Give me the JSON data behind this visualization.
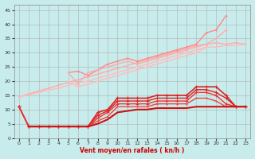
{
  "background_color": "#c8ecec",
  "grid_color": "#b0b0b0",
  "xlabel": "Vent moyen/en rafales ( kn/h )",
  "ylabel_ticks": [
    0,
    5,
    10,
    15,
    20,
    25,
    30,
    35,
    40,
    45
  ],
  "xlim": [
    -0.5,
    23.5
  ],
  "ylim": [
    0,
    47
  ],
  "xtick_labels": [
    "0",
    "1",
    "2",
    "3",
    "4",
    "5",
    "6",
    "7",
    "8",
    "9",
    "10",
    "11",
    "12",
    "13",
    "14",
    "15",
    "16",
    "17",
    "18",
    "19",
    "20",
    "21",
    "22",
    "23"
  ],
  "light_lines": [
    {
      "x": [
        0,
        1,
        2,
        3,
        4,
        5,
        6,
        7,
        8,
        9,
        10,
        11,
        12,
        13,
        14,
        15,
        16,
        17,
        18,
        19,
        20,
        21,
        22,
        23
      ],
      "y": [
        14.5,
        15.5,
        16.5,
        17.5,
        18.5,
        19.5,
        20.5,
        21.5,
        22.5,
        23.5,
        24.5,
        25.5,
        26.5,
        27.5,
        28.5,
        29.5,
        30.5,
        31.5,
        32.5,
        33.0,
        33.5,
        33.0,
        33.5,
        33.0
      ],
      "color": "#ffaaaa",
      "lw": 1.0
    },
    {
      "x": [
        0,
        1,
        2,
        3,
        4,
        5,
        6,
        7,
        8,
        9,
        10,
        11,
        12,
        13,
        14,
        15,
        16,
        17,
        18,
        19,
        20,
        21,
        22,
        23
      ],
      "y": [
        14.5,
        15.2,
        16.0,
        16.8,
        17.5,
        18.5,
        19.5,
        20.0,
        21.0,
        22.0,
        23.0,
        24.0,
        25.0,
        26.0,
        27.0,
        28.0,
        29.0,
        30.0,
        31.0,
        32.0,
        32.0,
        32.5,
        32.5,
        33.0
      ],
      "color": "#ffbbbb",
      "lw": 1.0
    },
    {
      "x": [
        5,
        6,
        7,
        8,
        9,
        10,
        11,
        12,
        13,
        14,
        15,
        16,
        17,
        18,
        19,
        20,
        21
      ],
      "y": [
        23,
        23.5,
        22,
        24,
        26,
        27,
        28,
        27,
        28,
        29,
        30,
        31,
        32,
        33,
        37,
        38,
        43
      ],
      "color": "#ff8888",
      "lw": 1.0
    },
    {
      "x": [
        5,
        6,
        7,
        8,
        9,
        10,
        11,
        12,
        13,
        14,
        15,
        16,
        17,
        18,
        19,
        20,
        21
      ],
      "y": [
        23,
        19,
        23,
        24,
        25,
        26,
        27,
        26,
        27,
        28,
        29,
        30,
        31,
        32,
        33,
        35,
        38
      ],
      "color": "#ffaaaa",
      "lw": 1.0
    },
    {
      "x": [
        5,
        6,
        7,
        8,
        9,
        10,
        11,
        12,
        13,
        14,
        15,
        16,
        17,
        18,
        19
      ],
      "y": [
        20,
        18,
        19,
        20,
        21,
        22,
        23,
        24,
        25,
        26,
        27,
        28,
        29,
        30,
        32
      ],
      "color": "#ffbbbb",
      "lw": 1.0
    }
  ],
  "dark_lines": [
    {
      "x": [
        0,
        1,
        2,
        3,
        4,
        5,
        6,
        7,
        8,
        9,
        10,
        11,
        12,
        13,
        14,
        15,
        16,
        17,
        18,
        19,
        20,
        21,
        22,
        23
      ],
      "y": [
        11,
        4,
        4,
        4,
        4,
        4,
        4,
        4,
        9,
        10,
        14,
        14,
        14,
        14,
        15,
        15,
        15,
        15,
        18,
        18,
        18,
        15,
        11,
        11
      ],
      "color": "#dd2222",
      "lw": 1.2,
      "marker": "+",
      "ms": 3.5
    },
    {
      "x": [
        0,
        1,
        2,
        3,
        4,
        5,
        6,
        7,
        8,
        9,
        10,
        11,
        12,
        13,
        14,
        15,
        16,
        17,
        18,
        19,
        20,
        21,
        22,
        23
      ],
      "y": [
        11,
        4,
        4,
        4,
        4,
        4,
        4,
        4,
        8,
        9.5,
        13,
        13,
        13,
        13,
        14,
        14,
        14,
        14,
        17,
        17,
        16,
        14,
        11,
        11
      ],
      "color": "#dd2222",
      "lw": 1.0,
      "marker": "+",
      "ms": 3.0
    },
    {
      "x": [
        0,
        1,
        2,
        3,
        4,
        5,
        6,
        7,
        8,
        9,
        10,
        11,
        12,
        13,
        14,
        15,
        16,
        17,
        18,
        19,
        20,
        21,
        22,
        23
      ],
      "y": [
        11,
        4,
        4,
        4,
        4,
        4,
        4,
        4,
        7,
        9,
        12,
        12,
        12,
        12,
        13,
        13,
        13,
        13,
        16,
        16,
        15,
        12,
        11,
        11
      ],
      "color": "#ee3333",
      "lw": 1.0,
      "marker": "+",
      "ms": 2.5
    },
    {
      "x": [
        1,
        2,
        3,
        4,
        5,
        6,
        7,
        8,
        9,
        10,
        11,
        12,
        13,
        14,
        15,
        16,
        17,
        18,
        19,
        20,
        21,
        22,
        23
      ],
      "y": [
        4,
        4,
        4,
        4,
        4,
        4,
        4,
        6,
        7.5,
        11,
        11,
        11,
        11,
        12,
        12,
        12,
        12,
        14,
        14,
        13,
        11,
        11,
        11
      ],
      "color": "#ee4444",
      "lw": 1.0,
      "marker": "+",
      "ms": 2.0
    },
    {
      "x": [
        1,
        2,
        3,
        4,
        5,
        6,
        7,
        8,
        9,
        10,
        11,
        12,
        13,
        14,
        15,
        16,
        17,
        18,
        19,
        20,
        21,
        22,
        23
      ],
      "y": [
        4,
        4,
        4,
        4,
        4,
        4,
        4,
        5,
        6.5,
        9,
        9.5,
        10,
        10,
        10.5,
        10.5,
        10.5,
        10.5,
        11,
        11,
        11,
        11,
        11,
        11
      ],
      "color": "#cc1111",
      "lw": 1.5,
      "marker": null,
      "ms": 0
    }
  ]
}
